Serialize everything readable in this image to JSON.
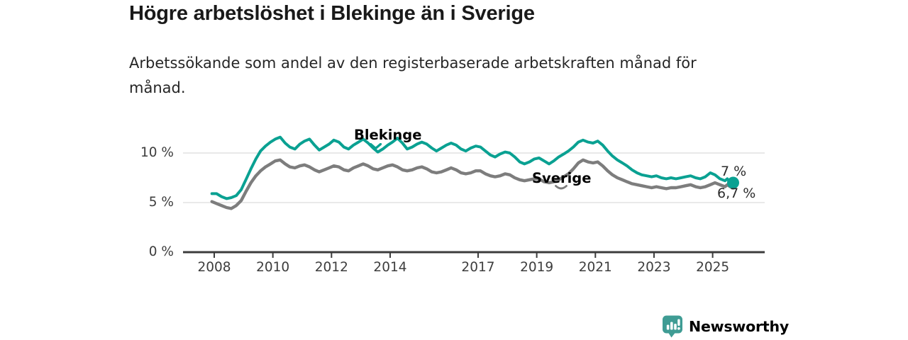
{
  "header": {
    "title": "Högre arbetslöshet i Blekinge än i Sverige",
    "subtitle": "Arbetssökande som andel av den registerbaserade arbetskraften månad för\nmånad."
  },
  "chart_data": {
    "type": "line",
    "title": "Högre arbetslöshet i Blekinge än i Sverige",
    "subtitle": "Arbetssökande som andel av den registerbaserade arbetskraften månad för månad.",
    "xlabel": "",
    "ylabel": "",
    "unit": "%",
    "grid": "horizontal",
    "x_range": [
      2007.9,
      2025.9
    ],
    "ylim": [
      0,
      13
    ],
    "x_ticks": [
      2008,
      2010,
      2012,
      2014,
      2017,
      2019,
      2021,
      2023,
      2025
    ],
    "y_ticks": [
      {
        "value": 0,
        "label": "0 %"
      },
      {
        "value": 5,
        "label": "5 %"
      },
      {
        "value": 10,
        "label": "10 %"
      }
    ],
    "colors": {
      "axis": "#3c3c3c",
      "gridline": "#dcdcdc",
      "tick_text": "#3d3d3d"
    },
    "series": [
      {
        "name": "Blekinge",
        "color": "#0aa192",
        "end_label": "7 %",
        "end_value": 7.0,
        "points": [
          [
            2007.92,
            5.9
          ],
          [
            2008.08,
            5.9
          ],
          [
            2008.25,
            5.6
          ],
          [
            2008.42,
            5.4
          ],
          [
            2008.58,
            5.5
          ],
          [
            2008.75,
            5.7
          ],
          [
            2008.92,
            6.3
          ],
          [
            2009.08,
            7.3
          ],
          [
            2009.25,
            8.4
          ],
          [
            2009.42,
            9.4
          ],
          [
            2009.58,
            10.2
          ],
          [
            2009.75,
            10.7
          ],
          [
            2009.92,
            11.1
          ],
          [
            2010.08,
            11.4
          ],
          [
            2010.25,
            11.6
          ],
          [
            2010.42,
            11.0
          ],
          [
            2010.58,
            10.6
          ],
          [
            2010.75,
            10.4
          ],
          [
            2010.92,
            10.9
          ],
          [
            2011.08,
            11.2
          ],
          [
            2011.25,
            11.4
          ],
          [
            2011.42,
            10.8
          ],
          [
            2011.58,
            10.3
          ],
          [
            2011.75,
            10.6
          ],
          [
            2011.92,
            10.9
          ],
          [
            2012.08,
            11.3
          ],
          [
            2012.25,
            11.1
          ],
          [
            2012.42,
            10.6
          ],
          [
            2012.58,
            10.4
          ],
          [
            2012.75,
            10.8
          ],
          [
            2012.92,
            11.1
          ],
          [
            2013.08,
            11.4
          ],
          [
            2013.25,
            11.0
          ],
          [
            2013.42,
            10.5
          ],
          [
            2013.58,
            10.1
          ],
          [
            2013.75,
            10.4
          ],
          [
            2013.92,
            10.8
          ],
          [
            2014.08,
            11.1
          ],
          [
            2014.25,
            11.5
          ],
          [
            2014.42,
            11.0
          ],
          [
            2014.58,
            10.4
          ],
          [
            2014.75,
            10.6
          ],
          [
            2014.92,
            10.9
          ],
          [
            2015.08,
            11.1
          ],
          [
            2015.25,
            10.9
          ],
          [
            2015.42,
            10.5
          ],
          [
            2015.58,
            10.2
          ],
          [
            2015.75,
            10.5
          ],
          [
            2015.92,
            10.8
          ],
          [
            2016.08,
            11.0
          ],
          [
            2016.25,
            10.8
          ],
          [
            2016.42,
            10.4
          ],
          [
            2016.58,
            10.2
          ],
          [
            2016.75,
            10.5
          ],
          [
            2016.92,
            10.7
          ],
          [
            2017.08,
            10.6
          ],
          [
            2017.25,
            10.2
          ],
          [
            2017.42,
            9.8
          ],
          [
            2017.58,
            9.6
          ],
          [
            2017.75,
            9.9
          ],
          [
            2017.92,
            10.1
          ],
          [
            2018.08,
            10.0
          ],
          [
            2018.25,
            9.6
          ],
          [
            2018.42,
            9.1
          ],
          [
            2018.58,
            8.9
          ],
          [
            2018.75,
            9.1
          ],
          [
            2018.92,
            9.4
          ],
          [
            2019.08,
            9.5
          ],
          [
            2019.25,
            9.2
          ],
          [
            2019.42,
            8.9
          ],
          [
            2019.58,
            9.2
          ],
          [
            2019.75,
            9.6
          ],
          [
            2019.92,
            9.9
          ],
          [
            2020.08,
            10.2
          ],
          [
            2020.25,
            10.6
          ],
          [
            2020.42,
            11.1
          ],
          [
            2020.58,
            11.3
          ],
          [
            2020.75,
            11.1
          ],
          [
            2020.92,
            11.0
          ],
          [
            2021.08,
            11.2
          ],
          [
            2021.25,
            10.8
          ],
          [
            2021.42,
            10.2
          ],
          [
            2021.58,
            9.7
          ],
          [
            2021.75,
            9.3
          ],
          [
            2021.92,
            9.0
          ],
          [
            2022.08,
            8.7
          ],
          [
            2022.25,
            8.3
          ],
          [
            2022.42,
            8.0
          ],
          [
            2022.58,
            7.8
          ],
          [
            2022.75,
            7.7
          ],
          [
            2022.92,
            7.6
          ],
          [
            2023.08,
            7.7
          ],
          [
            2023.25,
            7.5
          ],
          [
            2023.42,
            7.4
          ],
          [
            2023.58,
            7.5
          ],
          [
            2023.75,
            7.4
          ],
          [
            2023.92,
            7.5
          ],
          [
            2024.08,
            7.6
          ],
          [
            2024.25,
            7.7
          ],
          [
            2024.42,
            7.5
          ],
          [
            2024.58,
            7.4
          ],
          [
            2024.75,
            7.6
          ],
          [
            2024.92,
            8.0
          ],
          [
            2025.08,
            7.8
          ],
          [
            2025.25,
            7.4
          ],
          [
            2025.42,
            7.2
          ],
          [
            2025.5,
            7.4
          ],
          [
            2025.6,
            7.0
          ],
          [
            2025.7,
            7.0
          ]
        ]
      },
      {
        "name": "Sverige",
        "color": "#7d7d7d",
        "end_label": "6,7 %",
        "end_value": 6.7,
        "points": [
          [
            2007.92,
            5.1
          ],
          [
            2008.08,
            4.9
          ],
          [
            2008.25,
            4.7
          ],
          [
            2008.42,
            4.5
          ],
          [
            2008.58,
            4.4
          ],
          [
            2008.75,
            4.7
          ],
          [
            2008.92,
            5.2
          ],
          [
            2009.08,
            6.1
          ],
          [
            2009.25,
            7.0
          ],
          [
            2009.42,
            7.7
          ],
          [
            2009.58,
            8.2
          ],
          [
            2009.75,
            8.6
          ],
          [
            2009.92,
            8.9
          ],
          [
            2010.08,
            9.2
          ],
          [
            2010.25,
            9.3
          ],
          [
            2010.42,
            8.9
          ],
          [
            2010.58,
            8.6
          ],
          [
            2010.75,
            8.5
          ],
          [
            2010.92,
            8.7
          ],
          [
            2011.08,
            8.8
          ],
          [
            2011.25,
            8.6
          ],
          [
            2011.42,
            8.3
          ],
          [
            2011.58,
            8.1
          ],
          [
            2011.75,
            8.3
          ],
          [
            2011.92,
            8.5
          ],
          [
            2012.08,
            8.7
          ],
          [
            2012.25,
            8.6
          ],
          [
            2012.42,
            8.3
          ],
          [
            2012.58,
            8.2
          ],
          [
            2012.75,
            8.5
          ],
          [
            2012.92,
            8.7
          ],
          [
            2013.08,
            8.9
          ],
          [
            2013.25,
            8.7
          ],
          [
            2013.42,
            8.4
          ],
          [
            2013.58,
            8.3
          ],
          [
            2013.75,
            8.5
          ],
          [
            2013.92,
            8.7
          ],
          [
            2014.08,
            8.8
          ],
          [
            2014.25,
            8.6
          ],
          [
            2014.42,
            8.3
          ],
          [
            2014.58,
            8.2
          ],
          [
            2014.75,
            8.3
          ],
          [
            2014.92,
            8.5
          ],
          [
            2015.08,
            8.6
          ],
          [
            2015.25,
            8.4
          ],
          [
            2015.42,
            8.1
          ],
          [
            2015.58,
            8.0
          ],
          [
            2015.75,
            8.1
          ],
          [
            2015.92,
            8.3
          ],
          [
            2016.08,
            8.5
          ],
          [
            2016.25,
            8.3
          ],
          [
            2016.42,
            8.0
          ],
          [
            2016.58,
            7.9
          ],
          [
            2016.75,
            8.0
          ],
          [
            2016.92,
            8.2
          ],
          [
            2017.08,
            8.2
          ],
          [
            2017.25,
            7.9
          ],
          [
            2017.42,
            7.7
          ],
          [
            2017.58,
            7.6
          ],
          [
            2017.75,
            7.7
          ],
          [
            2017.92,
            7.9
          ],
          [
            2018.08,
            7.8
          ],
          [
            2018.25,
            7.5
          ],
          [
            2018.42,
            7.3
          ],
          [
            2018.58,
            7.2
          ],
          [
            2018.75,
            7.3
          ],
          [
            2018.92,
            7.4
          ],
          [
            2019.08,
            7.4
          ],
          [
            2019.25,
            7.1
          ],
          [
            2019.42,
            7.0
          ],
          [
            2019.58,
            7.1
          ],
          [
            2019.75,
            7.3
          ],
          [
            2019.92,
            7.6
          ],
          [
            2020.08,
            7.9
          ],
          [
            2020.25,
            8.4
          ],
          [
            2020.42,
            9.0
          ],
          [
            2020.58,
            9.3
          ],
          [
            2020.75,
            9.1
          ],
          [
            2020.92,
            9.0
          ],
          [
            2021.08,
            9.1
          ],
          [
            2021.25,
            8.7
          ],
          [
            2021.42,
            8.2
          ],
          [
            2021.58,
            7.8
          ],
          [
            2021.75,
            7.5
          ],
          [
            2021.92,
            7.3
          ],
          [
            2022.08,
            7.1
          ],
          [
            2022.25,
            6.9
          ],
          [
            2022.42,
            6.8
          ],
          [
            2022.58,
            6.7
          ],
          [
            2022.75,
            6.6
          ],
          [
            2022.92,
            6.5
          ],
          [
            2023.08,
            6.6
          ],
          [
            2023.25,
            6.5
          ],
          [
            2023.42,
            6.4
          ],
          [
            2023.58,
            6.5
          ],
          [
            2023.75,
            6.5
          ],
          [
            2023.92,
            6.6
          ],
          [
            2024.08,
            6.7
          ],
          [
            2024.25,
            6.8
          ],
          [
            2024.42,
            6.6
          ],
          [
            2024.58,
            6.5
          ],
          [
            2024.75,
            6.6
          ],
          [
            2024.92,
            6.8
          ],
          [
            2025.08,
            7.0
          ],
          [
            2025.25,
            6.8
          ],
          [
            2025.42,
            6.6
          ],
          [
            2025.5,
            6.8
          ],
          [
            2025.6,
            6.6
          ],
          [
            2025.7,
            6.7
          ]
        ]
      }
    ],
    "legend_position": "inline-on-lines"
  },
  "footer": {
    "brand": "Newsworthy",
    "brand_color": "#3f9c94"
  }
}
